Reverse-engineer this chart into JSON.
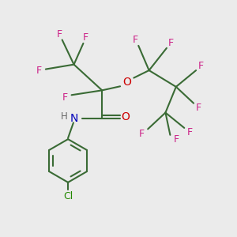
{
  "bg_color": "#ebebeb",
  "bond_color": "#3a6b35",
  "F_color": "#cc2288",
  "O_color": "#cc0000",
  "N_color": "#0000bb",
  "H_color": "#666666",
  "Cl_color": "#228800",
  "figsize": [
    3.0,
    3.0
  ],
  "dpi": 100,
  "xlim": [
    0,
    10
  ],
  "ylim": [
    0,
    10
  ]
}
